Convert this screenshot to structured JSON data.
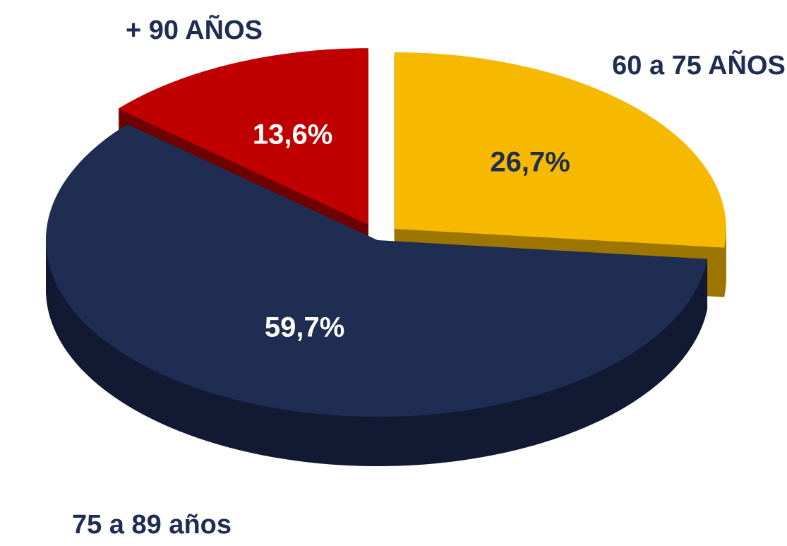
{
  "chart_data": {
    "type": "pie3d",
    "categories": [
      "60 a 75 AÑOS",
      "75 a 89 años",
      "+ 90 AÑOS"
    ],
    "values": [
      26.7,
      59.7,
      13.6
    ],
    "value_labels": [
      "26,7%",
      "59,7%",
      "13,6%"
    ],
    "colors": [
      "#f7b900",
      "#1f2d52",
      "#c00000"
    ],
    "side_colors": [
      "#9c7600",
      "#121a33",
      "#6e0000"
    ],
    "label_colors": [
      "#1f2d52",
      "#ffffff",
      "#ffffff"
    ],
    "exploded": [
      true,
      false,
      true
    ],
    "start_angle": 0,
    "clockwise": true
  }
}
